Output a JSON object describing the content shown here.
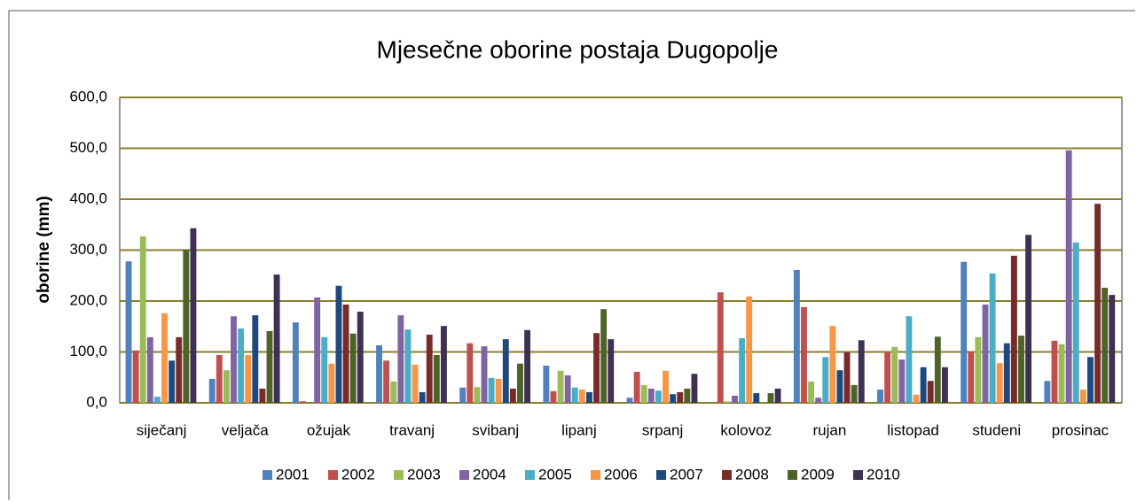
{
  "chart_data": {
    "type": "bar",
    "title": "Mjesečne oborine postaja Dugopolje",
    "y_label": "oborine (mm)",
    "categories": [
      "siječanj",
      "veljača",
      "ožujak",
      "travanj",
      "svibanj",
      "lipanj",
      "srpanj",
      "kolovoz",
      "rujan",
      "listopad",
      "studeni",
      "prosinac"
    ],
    "series": [
      {
        "name": "2001",
        "color": "#4f81bd",
        "values": [
          278,
          47,
          158,
          113,
          30,
          73,
          10,
          0,
          261,
          26,
          277,
          43
        ]
      },
      {
        "name": "2002",
        "color": "#c0504d",
        "values": [
          103,
          94,
          3,
          83,
          117,
          23,
          61,
          217,
          188,
          99,
          101,
          122
        ]
      },
      {
        "name": "2003",
        "color": "#9bbb59",
        "values": [
          327,
          64,
          0,
          42,
          31,
          63,
          35,
          3,
          42,
          110,
          129,
          115
        ]
      },
      {
        "name": "2004",
        "color": "#8064a2",
        "values": [
          129,
          170,
          207,
          172,
          111,
          54,
          28,
          14,
          10,
          85,
          193,
          496
        ]
      },
      {
        "name": "2005",
        "color": "#4bacc6",
        "values": [
          12,
          146,
          129,
          144,
          49,
          30,
          24,
          127,
          90,
          170,
          254,
          315
        ]
      },
      {
        "name": "2006",
        "color": "#f79646",
        "values": [
          176,
          94,
          77,
          75,
          47,
          26,
          63,
          209,
          151,
          16,
          78,
          26
        ]
      },
      {
        "name": "2007",
        "color": "#1f497d",
        "values": [
          83,
          172,
          230,
          21,
          125,
          21,
          17,
          19,
          64,
          70,
          117,
          90
        ]
      },
      {
        "name": "2008",
        "color": "#772c2a",
        "values": [
          129,
          28,
          193,
          134,
          28,
          137,
          21,
          0,
          99,
          43,
          289,
          391
        ]
      },
      {
        "name": "2009",
        "color": "#4f6228",
        "values": [
          301,
          141,
          136,
          94,
          77,
          184,
          28,
          19,
          35,
          130,
          132,
          226
        ]
      },
      {
        "name": "2010",
        "color": "#3f3151",
        "values": [
          343,
          252,
          179,
          151,
          143,
          125,
          57,
          28,
          123,
          70,
          330,
          212
        ]
      }
    ],
    "ylim": [
      0,
      600
    ],
    "yticks": [
      {
        "value": 0,
        "label": "0,0"
      },
      {
        "value": 100,
        "label": "100,0"
      },
      {
        "value": 200,
        "label": "200,0"
      },
      {
        "value": 300,
        "label": "300,0"
      },
      {
        "value": 400,
        "label": "400,0"
      },
      {
        "value": 500,
        "label": "500,0"
      },
      {
        "value": 600,
        "label": "600,0"
      }
    ],
    "grid": true,
    "legend": "bottom"
  }
}
